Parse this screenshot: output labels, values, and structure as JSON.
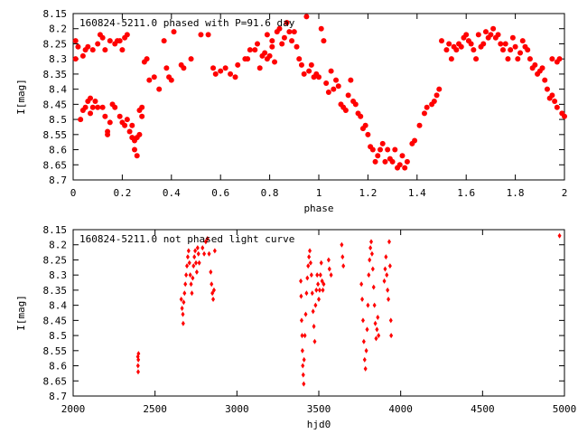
{
  "chart_data": [
    {
      "type": "scatter",
      "title": "160824-5211.0 phased with P=91.6 day",
      "xlabel": "phase",
      "ylabel": "I[mag]",
      "xlim": [
        0,
        2
      ],
      "ylim": [
        8.7,
        8.15
      ],
      "y_inverted": true,
      "xticks": [
        "0",
        "0.2",
        "0.4",
        "0.6",
        "0.8",
        "1",
        "1.2",
        "1.4",
        "1.6",
        "1.8",
        "2"
      ],
      "yticks": [
        "8.15",
        "8.2",
        "8.25",
        "8.3",
        "8.35",
        "8.4",
        "8.45",
        "8.5",
        "8.55",
        "8.6",
        "8.65",
        "8.7"
      ],
      "marker_color": "#ff0000",
      "marker": "filled-circle",
      "grid": false,
      "legend": "none",
      "points": [
        [
          0.01,
          8.24
        ],
        [
          0.01,
          8.3
        ],
        [
          0.02,
          8.26
        ],
        [
          0.03,
          8.5
        ],
        [
          0.04,
          8.47
        ],
        [
          0.04,
          8.29
        ],
        [
          0.05,
          8.27
        ],
        [
          0.05,
          8.46
        ],
        [
          0.06,
          8.44
        ],
        [
          0.06,
          8.26
        ],
        [
          0.07,
          8.48
        ],
        [
          0.07,
          8.43
        ],
        [
          0.08,
          8.27
        ],
        [
          0.08,
          8.46
        ],
        [
          0.09,
          8.44
        ],
        [
          0.1,
          8.25
        ],
        [
          0.1,
          8.46
        ],
        [
          0.11,
          8.22
        ],
        [
          0.12,
          8.23
        ],
        [
          0.12,
          8.46
        ],
        [
          0.13,
          8.49
        ],
        [
          0.13,
          8.27
        ],
        [
          0.14,
          8.54
        ],
        [
          0.14,
          8.55
        ],
        [
          0.15,
          8.51
        ],
        [
          0.15,
          8.24
        ],
        [
          0.16,
          8.45
        ],
        [
          0.17,
          8.25
        ],
        [
          0.17,
          8.46
        ],
        [
          0.18,
          8.24
        ],
        [
          0.19,
          8.49
        ],
        [
          0.19,
          8.24
        ],
        [
          0.2,
          8.51
        ],
        [
          0.2,
          8.27
        ],
        [
          0.21,
          8.23
        ],
        [
          0.21,
          8.52
        ],
        [
          0.22,
          8.22
        ],
        [
          0.22,
          8.5
        ],
        [
          0.23,
          8.54
        ],
        [
          0.24,
          8.56
        ],
        [
          0.24,
          8.52
        ],
        [
          0.25,
          8.57
        ],
        [
          0.25,
          8.6
        ],
        [
          0.26,
          8.62
        ],
        [
          0.26,
          8.56
        ],
        [
          0.27,
          8.55
        ],
        [
          0.27,
          8.47
        ],
        [
          0.28,
          8.49
        ],
        [
          0.28,
          8.46
        ],
        [
          0.29,
          8.31
        ],
        [
          0.3,
          8.3
        ],
        [
          0.31,
          8.37
        ],
        [
          0.33,
          8.36
        ],
        [
          0.35,
          8.4
        ],
        [
          0.37,
          8.24
        ],
        [
          0.38,
          8.33
        ],
        [
          0.39,
          8.36
        ],
        [
          0.4,
          8.37
        ],
        [
          0.41,
          8.21
        ],
        [
          0.44,
          8.32
        ],
        [
          0.45,
          8.33
        ],
        [
          0.48,
          8.3
        ],
        [
          0.52,
          8.22
        ],
        [
          0.55,
          8.22
        ],
        [
          0.57,
          8.33
        ],
        [
          0.58,
          8.35
        ],
        [
          0.6,
          8.34
        ],
        [
          0.62,
          8.33
        ],
        [
          0.64,
          8.35
        ],
        [
          0.66,
          8.36
        ],
        [
          0.67,
          8.32
        ],
        [
          0.7,
          8.3
        ],
        [
          0.71,
          8.3
        ],
        [
          0.72,
          8.27
        ],
        [
          0.74,
          8.27
        ],
        [
          0.75,
          8.25
        ],
        [
          0.76,
          8.33
        ],
        [
          0.77,
          8.29
        ],
        [
          0.78,
          8.28
        ],
        [
          0.79,
          8.22
        ],
        [
          0.79,
          8.3
        ],
        [
          0.8,
          8.29
        ],
        [
          0.81,
          8.26
        ],
        [
          0.81,
          8.24
        ],
        [
          0.82,
          8.31
        ],
        [
          0.83,
          8.21
        ],
        [
          0.84,
          8.2
        ],
        [
          0.85,
          8.25
        ],
        [
          0.86,
          8.23
        ],
        [
          0.87,
          8.18
        ],
        [
          0.88,
          8.21
        ],
        [
          0.89,
          8.24
        ],
        [
          0.9,
          8.21
        ],
        [
          0.91,
          8.26
        ],
        [
          0.92,
          8.3
        ],
        [
          0.93,
          8.32
        ],
        [
          0.94,
          8.35
        ],
        [
          0.95,
          8.16
        ],
        [
          0.96,
          8.34
        ],
        [
          0.97,
          8.32
        ],
        [
          0.98,
          8.36
        ],
        [
          0.99,
          8.35
        ],
        [
          1.0,
          8.36
        ],
        [
          1.01,
          8.2
        ],
        [
          1.02,
          8.24
        ],
        [
          1.03,
          8.38
        ],
        [
          1.04,
          8.41
        ],
        [
          1.05,
          8.34
        ],
        [
          1.06,
          8.4
        ],
        [
          1.07,
          8.37
        ],
        [
          1.08,
          8.39
        ],
        [
          1.09,
          8.45
        ],
        [
          1.1,
          8.46
        ],
        [
          1.11,
          8.47
        ],
        [
          1.12,
          8.42
        ],
        [
          1.13,
          8.37
        ],
        [
          1.14,
          8.44
        ],
        [
          1.15,
          8.45
        ],
        [
          1.16,
          8.48
        ],
        [
          1.17,
          8.49
        ],
        [
          1.18,
          8.53
        ],
        [
          1.19,
          8.52
        ],
        [
          1.2,
          8.55
        ],
        [
          1.21,
          8.59
        ],
        [
          1.22,
          8.6
        ],
        [
          1.23,
          8.64
        ],
        [
          1.24,
          8.62
        ],
        [
          1.25,
          8.6
        ],
        [
          1.26,
          8.58
        ],
        [
          1.27,
          8.64
        ],
        [
          1.28,
          8.6
        ],
        [
          1.29,
          8.63
        ],
        [
          1.3,
          8.64
        ],
        [
          1.31,
          8.6
        ],
        [
          1.32,
          8.66
        ],
        [
          1.33,
          8.65
        ],
        [
          1.34,
          8.62
        ],
        [
          1.35,
          8.66
        ],
        [
          1.36,
          8.64
        ],
        [
          1.38,
          8.58
        ],
        [
          1.39,
          8.57
        ],
        [
          1.41,
          8.52
        ],
        [
          1.43,
          8.48
        ],
        [
          1.44,
          8.46
        ],
        [
          1.46,
          8.45
        ],
        [
          1.47,
          8.44
        ],
        [
          1.48,
          8.42
        ],
        [
          1.49,
          8.4
        ],
        [
          1.5,
          8.24
        ],
        [
          1.52,
          8.27
        ],
        [
          1.53,
          8.25
        ],
        [
          1.54,
          8.3
        ],
        [
          1.55,
          8.26
        ],
        [
          1.56,
          8.27
        ],
        [
          1.57,
          8.25
        ],
        [
          1.58,
          8.26
        ],
        [
          1.59,
          8.23
        ],
        [
          1.6,
          8.22
        ],
        [
          1.61,
          8.24
        ],
        [
          1.62,
          8.25
        ],
        [
          1.63,
          8.27
        ],
        [
          1.64,
          8.3
        ],
        [
          1.65,
          8.22
        ],
        [
          1.66,
          8.26
        ],
        [
          1.67,
          8.25
        ],
        [
          1.68,
          8.21
        ],
        [
          1.69,
          8.23
        ],
        [
          1.7,
          8.22
        ],
        [
          1.71,
          8.2
        ],
        [
          1.72,
          8.23
        ],
        [
          1.73,
          8.22
        ],
        [
          1.74,
          8.25
        ],
        [
          1.75,
          8.27
        ],
        [
          1.76,
          8.25
        ],
        [
          1.77,
          8.3
        ],
        [
          1.78,
          8.27
        ],
        [
          1.79,
          8.23
        ],
        [
          1.8,
          8.26
        ],
        [
          1.81,
          8.3
        ],
        [
          1.82,
          8.28
        ],
        [
          1.83,
          8.24
        ],
        [
          1.84,
          8.26
        ],
        [
          1.85,
          8.27
        ],
        [
          1.86,
          8.3
        ],
        [
          1.87,
          8.33
        ],
        [
          1.88,
          8.32
        ],
        [
          1.89,
          8.35
        ],
        [
          1.9,
          8.34
        ],
        [
          1.91,
          8.33
        ],
        [
          1.92,
          8.37
        ],
        [
          1.93,
          8.4
        ],
        [
          1.94,
          8.43
        ],
        [
          1.95,
          8.3
        ],
        [
          1.96,
          8.44
        ],
        [
          1.97,
          8.46
        ],
        [
          1.98,
          8.3
        ],
        [
          1.99,
          8.48
        ],
        [
          2.0,
          8.49
        ],
        [
          1.95,
          8.42
        ],
        [
          1.97,
          8.31
        ]
      ]
    },
    {
      "type": "scatter",
      "title": "160824-5211.0 not phased light curve",
      "xlabel": "hjd0",
      "ylabel": "I[mag]",
      "xlim": [
        2000,
        5000
      ],
      "ylim": [
        8.7,
        8.15
      ],
      "y_inverted": true,
      "xticks": [
        "2000",
        "2500",
        "3000",
        "3500",
        "4000",
        "4500",
        "5000"
      ],
      "yticks": [
        "8.15",
        "8.2",
        "8.25",
        "8.3",
        "8.35",
        "8.4",
        "8.45",
        "8.5",
        "8.55",
        "8.6",
        "8.65",
        "8.7"
      ],
      "marker_color": "#ff0000",
      "marker": "filled-diamond",
      "grid": false,
      "legend": "none",
      "points": [
        [
          2395,
          8.57
        ],
        [
          2396,
          8.6
        ],
        [
          2397,
          8.62
        ],
        [
          2398,
          8.58
        ],
        [
          2399,
          8.56
        ],
        [
          2660,
          8.38
        ],
        [
          2665,
          8.41
        ],
        [
          2670,
          8.43
        ],
        [
          2672,
          8.46
        ],
        [
          2675,
          8.39
        ],
        [
          2680,
          8.36
        ],
        [
          2685,
          8.33
        ],
        [
          2690,
          8.3
        ],
        [
          2695,
          8.27
        ],
        [
          2700,
          8.24
        ],
        [
          2705,
          8.22
        ],
        [
          2710,
          8.26
        ],
        [
          2715,
          8.3
        ],
        [
          2720,
          8.33
        ],
        [
          2725,
          8.36
        ],
        [
          2730,
          8.31
        ],
        [
          2735,
          8.27
        ],
        [
          2740,
          8.24
        ],
        [
          2745,
          8.22
        ],
        [
          2750,
          8.26
        ],
        [
          2755,
          8.29
        ],
        [
          2760,
          8.21
        ],
        [
          2765,
          8.23
        ],
        [
          2770,
          8.26
        ],
        [
          2790,
          8.21
        ],
        [
          2800,
          8.23
        ],
        [
          2810,
          8.19
        ],
        [
          2820,
          8.18
        ],
        [
          2830,
          8.23
        ],
        [
          2840,
          8.29
        ],
        [
          2845,
          8.33
        ],
        [
          2850,
          8.36
        ],
        [
          2855,
          8.38
        ],
        [
          2860,
          8.35
        ],
        [
          2865,
          8.22
        ],
        [
          3390,
          8.32
        ],
        [
          3392,
          8.37
        ],
        [
          3395,
          8.45
        ],
        [
          3398,
          8.5
        ],
        [
          3400,
          8.55
        ],
        [
          3402,
          8.6
        ],
        [
          3405,
          8.63
        ],
        [
          3408,
          8.66
        ],
        [
          3410,
          8.58
        ],
        [
          3415,
          8.5
        ],
        [
          3420,
          8.43
        ],
        [
          3425,
          8.36
        ],
        [
          3430,
          8.31
        ],
        [
          3435,
          8.27
        ],
        [
          3440,
          8.24
        ],
        [
          3445,
          8.22
        ],
        [
          3450,
          8.26
        ],
        [
          3455,
          8.3
        ],
        [
          3460,
          8.36
        ],
        [
          3465,
          8.42
        ],
        [
          3470,
          8.47
        ],
        [
          3475,
          8.52
        ],
        [
          3480,
          8.4
        ],
        [
          3485,
          8.35
        ],
        [
          3490,
          8.3
        ],
        [
          3495,
          8.33
        ],
        [
          3500,
          8.38
        ],
        [
          3505,
          8.35
        ],
        [
          3510,
          8.3
        ],
        [
          3515,
          8.26
        ],
        [
          3520,
          8.32
        ],
        [
          3525,
          8.35
        ],
        [
          3530,
          8.33
        ],
        [
          3560,
          8.25
        ],
        [
          3565,
          8.28
        ],
        [
          3575,
          8.3
        ],
        [
          3640,
          8.2
        ],
        [
          3645,
          8.24
        ],
        [
          3650,
          8.27
        ],
        [
          3760,
          8.33
        ],
        [
          3765,
          8.38
        ],
        [
          3770,
          8.45
        ],
        [
          3775,
          8.52
        ],
        [
          3780,
          8.58
        ],
        [
          3785,
          8.61
        ],
        [
          3790,
          8.55
        ],
        [
          3795,
          8.48
        ],
        [
          3800,
          8.4
        ],
        [
          3805,
          8.3
        ],
        [
          3810,
          8.25
        ],
        [
          3815,
          8.21
        ],
        [
          3820,
          8.19
        ],
        [
          3825,
          8.23
        ],
        [
          3830,
          8.28
        ],
        [
          3835,
          8.34
        ],
        [
          3840,
          8.4
        ],
        [
          3845,
          8.46
        ],
        [
          3850,
          8.51
        ],
        [
          3855,
          8.48
        ],
        [
          3860,
          8.44
        ],
        [
          3865,
          8.5
        ],
        [
          3900,
          8.32
        ],
        [
          3905,
          8.28
        ],
        [
          3910,
          8.24
        ],
        [
          3915,
          8.3
        ],
        [
          3920,
          8.35
        ],
        [
          3925,
          8.38
        ],
        [
          3930,
          8.19
        ],
        [
          3935,
          8.27
        ],
        [
          3940,
          8.45
        ],
        [
          3942,
          8.5
        ],
        [
          4970,
          8.17
        ]
      ]
    }
  ]
}
